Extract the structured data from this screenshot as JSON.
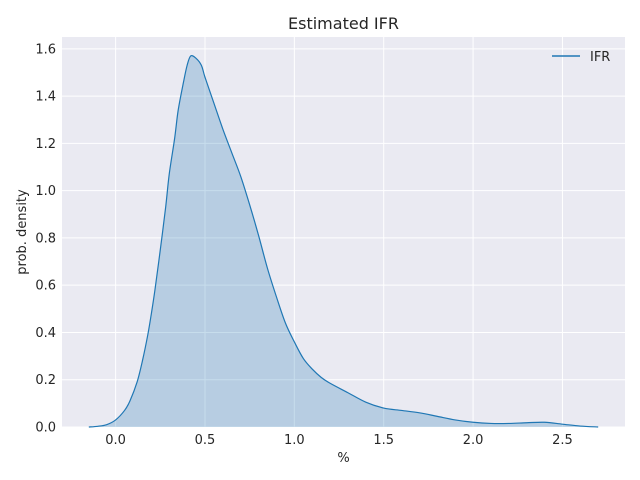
{
  "chart_data": {
    "type": "area",
    "title": "Estimated IFR",
    "xlabel": "%",
    "ylabel": "prob. density",
    "xlim": [
      -0.3,
      2.85
    ],
    "ylim": [
      0,
      1.65
    ],
    "x_ticks": [
      0.0,
      0.5,
      1.0,
      1.5,
      2.0,
      2.5
    ],
    "x_tick_labels": [
      "0.0",
      "0.5",
      "1.0",
      "1.5",
      "2.0",
      "2.5"
    ],
    "y_ticks": [
      0.0,
      0.2,
      0.4,
      0.6,
      0.8,
      1.0,
      1.2,
      1.4,
      1.6
    ],
    "y_tick_labels": [
      "0.0",
      "0.2",
      "0.4",
      "0.6",
      "0.8",
      "1.0",
      "1.2",
      "1.4",
      "1.6"
    ],
    "grid": true,
    "legend_position": "top-right",
    "colors": {
      "line": "#1f77b4",
      "fill": "#1f77b4",
      "background": "#eaeaf2",
      "grid": "#ffffff"
    },
    "series": [
      {
        "name": "IFR",
        "x": [
          -0.15,
          -0.1,
          -0.05,
          0.0,
          0.05,
          0.08,
          0.12,
          0.15,
          0.18,
          0.2,
          0.22,
          0.25,
          0.28,
          0.3,
          0.33,
          0.35,
          0.38,
          0.4,
          0.42,
          0.45,
          0.48,
          0.5,
          0.55,
          0.6,
          0.65,
          0.7,
          0.75,
          0.8,
          0.85,
          0.9,
          0.95,
          1.0,
          1.05,
          1.1,
          1.15,
          1.2,
          1.3,
          1.4,
          1.5,
          1.6,
          1.7,
          1.8,
          1.9,
          2.0,
          2.1,
          2.2,
          2.3,
          2.4,
          2.5,
          2.6,
          2.7
        ],
        "y": [
          0.0,
          0.003,
          0.01,
          0.03,
          0.07,
          0.11,
          0.19,
          0.28,
          0.39,
          0.48,
          0.58,
          0.75,
          0.93,
          1.07,
          1.22,
          1.34,
          1.46,
          1.53,
          1.57,
          1.56,
          1.53,
          1.48,
          1.37,
          1.26,
          1.16,
          1.06,
          0.94,
          0.81,
          0.67,
          0.55,
          0.44,
          0.36,
          0.29,
          0.245,
          0.21,
          0.185,
          0.145,
          0.105,
          0.08,
          0.07,
          0.06,
          0.045,
          0.03,
          0.02,
          0.015,
          0.015,
          0.018,
          0.02,
          0.012,
          0.004,
          0.0
        ]
      }
    ]
  }
}
